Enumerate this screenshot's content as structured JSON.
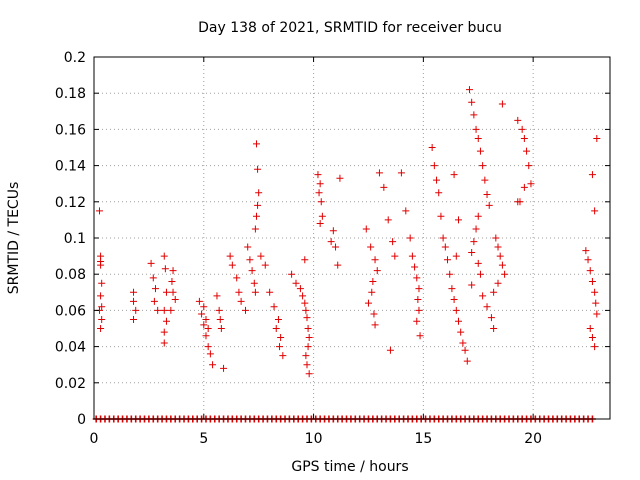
{
  "chart_data": {
    "type": "scatter",
    "title": "Day 138 of 2021, SRMTID for receiver bucu",
    "xlabel": "GPS time / hours",
    "ylabel": "SRMTID / TECUs",
    "xlim": [
      0,
      23.5
    ],
    "ylim": [
      0,
      0.2
    ],
    "x_ticks": [
      0,
      5,
      10,
      15,
      20
    ],
    "x_tick_labels": [
      "0",
      "5",
      "10",
      "15",
      "20"
    ],
    "y_ticks": [
      0,
      0.02,
      0.04,
      0.06,
      0.08,
      0.1,
      0.12,
      0.14,
      0.16,
      0.18,
      0.2
    ],
    "y_tick_labels": [
      "0",
      "0.02",
      "0.04",
      "0.06",
      "0.08",
      "0.1",
      "0.12",
      "0.14",
      "0.16",
      "0.18",
      "0.2"
    ],
    "grid": true,
    "marker": "+",
    "colors": {
      "series": "#e00000",
      "grid": "#a0a0a0",
      "axis": "#000000"
    },
    "series": [
      {
        "name": "SRMTID",
        "x": [
          0.25,
          0.3,
          0.3,
          0.35,
          0.3,
          0.35,
          0.35,
          0.3,
          0.3,
          0.25,
          1.8,
          1.8,
          1.9,
          1.8,
          2.6,
          2.7,
          2.8,
          2.75,
          2.9,
          3.2,
          3.25,
          3.3,
          3.2,
          3.3,
          3.2,
          3.2,
          3.6,
          3.55,
          3.6,
          3.7,
          3.5,
          4.8,
          4.9,
          5.0,
          5.1,
          5.2,
          5.3,
          5.4,
          5.0,
          5.1,
          5.2,
          5.6,
          5.7,
          5.75,
          5.8,
          5.9,
          6.2,
          6.3,
          6.5,
          6.6,
          6.7,
          6.9,
          7.0,
          7.1,
          7.2,
          7.3,
          7.35,
          7.4,
          7.45,
          7.5,
          7.45,
          7.4,
          7.35,
          7.6,
          7.8,
          8.0,
          8.2,
          8.4,
          8.3,
          8.5,
          8.45,
          8.6,
          9.0,
          9.2,
          9.4,
          9.5,
          9.6,
          9.65,
          9.7,
          9.75,
          9.8,
          9.75,
          9.65,
          9.7,
          9.8,
          9.6,
          10.2,
          10.3,
          10.25,
          10.35,
          10.4,
          10.3,
          10.8,
          10.9,
          11.0,
          11.2,
          11.1,
          12.4,
          12.6,
          12.8,
          12.9,
          12.7,
          12.65,
          12.5,
          12.75,
          12.8,
          13.0,
          13.2,
          13.4,
          13.6,
          13.7,
          13.5,
          14.0,
          14.2,
          14.4,
          14.5,
          14.6,
          14.7,
          14.8,
          14.75,
          14.8,
          14.7,
          14.85,
          15.4,
          15.5,
          15.6,
          15.7,
          15.8,
          15.9,
          16.0,
          16.1,
          16.2,
          16.3,
          16.4,
          16.5,
          16.6,
          16.7,
          16.8,
          16.9,
          17.0,
          16.4,
          16.6,
          16.5,
          17.1,
          17.2,
          17.3,
          17.4,
          17.5,
          17.6,
          17.7,
          17.8,
          17.9,
          18.0,
          17.5,
          17.4,
          17.3,
          17.2,
          17.5,
          17.6,
          17.2,
          17.7,
          17.9,
          18.1,
          18.2,
          18.3,
          18.4,
          18.5,
          18.6,
          18.7,
          18.4,
          18.2,
          18.6,
          19.3,
          19.5,
          19.6,
          19.7,
          19.8,
          19.9,
          19.4,
          19.6,
          19.3,
          22.4,
          22.5,
          22.6,
          22.7,
          22.8,
          22.85,
          22.9,
          22.6,
          22.7,
          22.8,
          22.9,
          22.7,
          22.8
        ],
        "y": [
          0.115,
          0.09,
          0.085,
          0.075,
          0.068,
          0.062,
          0.055,
          0.05,
          0.087,
          0.06,
          0.07,
          0.065,
          0.06,
          0.055,
          0.086,
          0.078,
          0.072,
          0.065,
          0.06,
          0.09,
          0.083,
          0.07,
          0.06,
          0.054,
          0.048,
          0.042,
          0.082,
          0.076,
          0.07,
          0.066,
          0.06,
          0.065,
          0.058,
          0.052,
          0.046,
          0.04,
          0.036,
          0.03,
          0.062,
          0.055,
          0.05,
          0.068,
          0.06,
          0.055,
          0.05,
          0.028,
          0.09,
          0.085,
          0.078,
          0.07,
          0.065,
          0.06,
          0.095,
          0.088,
          0.082,
          0.075,
          0.07,
          0.152,
          0.138,
          0.125,
          0.118,
          0.112,
          0.105,
          0.09,
          0.085,
          0.07,
          0.062,
          0.055,
          0.05,
          0.045,
          0.04,
          0.035,
          0.08,
          0.075,
          0.072,
          0.068,
          0.064,
          0.06,
          0.056,
          0.05,
          0.045,
          0.04,
          0.035,
          0.03,
          0.025,
          0.088,
          0.135,
          0.13,
          0.125,
          0.12,
          0.112,
          0.108,
          0.098,
          0.104,
          0.095,
          0.133,
          0.085,
          0.105,
          0.095,
          0.088,
          0.082,
          0.076,
          0.07,
          0.064,
          0.058,
          0.052,
          0.136,
          0.128,
          0.11,
          0.098,
          0.09,
          0.038,
          0.136,
          0.115,
          0.1,
          0.09,
          0.084,
          0.078,
          0.072,
          0.066,
          0.06,
          0.054,
          0.046,
          0.15,
          0.14,
          0.132,
          0.125,
          0.112,
          0.1,
          0.095,
          0.088,
          0.08,
          0.072,
          0.066,
          0.06,
          0.054,
          0.048,
          0.042,
          0.038,
          0.032,
          0.135,
          0.11,
          0.09,
          0.182,
          0.175,
          0.168,
          0.16,
          0.155,
          0.148,
          0.14,
          0.132,
          0.124,
          0.118,
          0.112,
          0.105,
          0.098,
          0.092,
          0.086,
          0.08,
          0.074,
          0.068,
          0.062,
          0.056,
          0.05,
          0.1,
          0.095,
          0.09,
          0.085,
          0.08,
          0.075,
          0.07,
          0.174,
          0.165,
          0.16,
          0.155,
          0.148,
          0.14,
          0.13,
          0.12,
          0.128,
          0.12,
          0.093,
          0.088,
          0.082,
          0.076,
          0.07,
          0.064,
          0.058,
          0.05,
          0.045,
          0.04,
          0.155,
          0.135,
          0.115
        ]
      }
    ],
    "zero_line_x": [
      0.1,
      0.3,
      0.5,
      0.7,
      0.9,
      1.1,
      1.3,
      1.5,
      1.7,
      1.9,
      2.1,
      2.3,
      2.5,
      2.7,
      2.9,
      3.1,
      3.3,
      3.5,
      3.7,
      3.9,
      4.1,
      4.3,
      4.5,
      4.7,
      4.9,
      5.1,
      5.3,
      5.5,
      5.7,
      5.9,
      6.1,
      6.3,
      6.5,
      6.7,
      6.9,
      7.1,
      7.3,
      7.5,
      7.7,
      7.9,
      8.1,
      8.3,
      8.5,
      8.7,
      8.9,
      9.1,
      9.3,
      9.5,
      9.7,
      9.9,
      10.1,
      10.3,
      10.5,
      10.7,
      10.9,
      11.1,
      11.3,
      11.5,
      11.7,
      11.9,
      12.1,
      12.3,
      12.5,
      12.7,
      12.9,
      13.1,
      13.3,
      13.5,
      13.7,
      13.9,
      14.1,
      14.3,
      14.5,
      14.7,
      14.9,
      15.1,
      15.3,
      15.5,
      15.7,
      15.9,
      16.1,
      16.3,
      16.5,
      16.7,
      16.9,
      17.1,
      17.3,
      17.5,
      17.7,
      17.9,
      18.1,
      18.3,
      18.5,
      18.7,
      18.9,
      19.1,
      19.3,
      19.5,
      19.7,
      19.9,
      20.1,
      20.3,
      20.5,
      20.7,
      20.9,
      21.1,
      21.3,
      21.5,
      21.7,
      21.9,
      22.1,
      22.3,
      22.5,
      22.7
    ]
  }
}
